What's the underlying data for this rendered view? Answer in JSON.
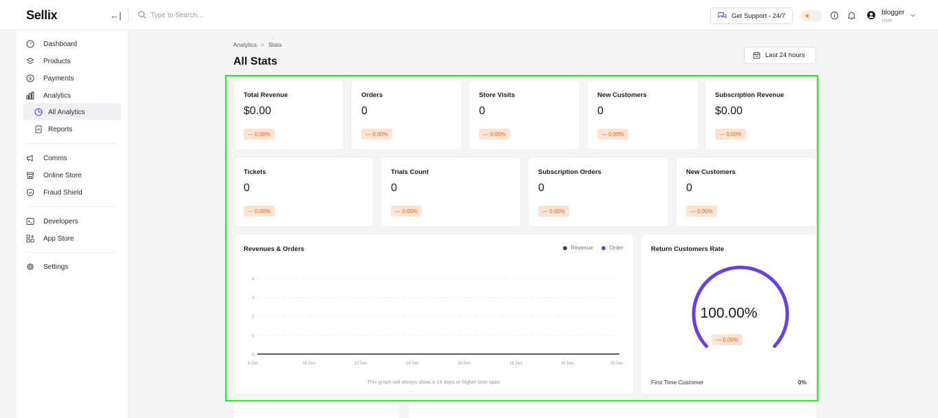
{
  "app": {
    "logo": "Sellix"
  },
  "header": {
    "collapse_glyph": "←|",
    "search": {
      "placeholder": "Type to Search..."
    },
    "support_label": "Get Support - 24/7",
    "user": {
      "name": "blogger",
      "role": "User"
    }
  },
  "sidebar": {
    "items": [
      {
        "label": "Dashboard",
        "icon": "dashboard-icon"
      },
      {
        "label": "Products",
        "icon": "products-icon"
      },
      {
        "label": "Payments",
        "icon": "payments-icon"
      },
      {
        "label": "Analytics",
        "icon": "analytics-icon"
      },
      {
        "label": "All Analytics",
        "icon": "pie-chart-icon",
        "active": true
      },
      {
        "label": "Reports",
        "icon": "reports-icon"
      },
      {
        "label": "Comms",
        "icon": "megaphone-icon"
      },
      {
        "label": "Online Store",
        "icon": "store-icon"
      },
      {
        "label": "Fraud Shield",
        "icon": "shield-icon"
      },
      {
        "label": "Developers",
        "icon": "terminal-icon"
      },
      {
        "label": "App Store",
        "icon": "apps-icon"
      },
      {
        "label": "Settings",
        "icon": "gear-icon"
      }
    ]
  },
  "main": {
    "breadcrumb": {
      "parent": "Analytics",
      "separator": ">",
      "current": "Stats"
    },
    "title": "All Stats",
    "range_label": "Last 24 hours",
    "row1": [
      {
        "label": "Total Revenue",
        "value": "$0.00",
        "change": "— 0.00%"
      },
      {
        "label": "Orders",
        "value": "0",
        "change": "— 0.00%"
      },
      {
        "label": "Store Visits",
        "value": "0",
        "change": "— 0.00%"
      },
      {
        "label": "New Customers",
        "value": "0",
        "change": "— 0.00%"
      },
      {
        "label": "Subscription Revenue",
        "value": "$0.00",
        "change": "— 0.00%"
      }
    ],
    "row2": [
      {
        "label": "Tickets",
        "value": "0",
        "change": "— 0.00%"
      },
      {
        "label": "Trials Count",
        "value": "0",
        "change": "— 0.00%"
      },
      {
        "label": "Subscription Orders",
        "value": "0",
        "change": "— 0.00%"
      },
      {
        "label": "New Customers",
        "value": "0",
        "change": "— 0.00%"
      }
    ],
    "revenue_chart": {
      "title": "Revenues & Orders",
      "note": "This graph will always show a 14 days or higher time span"
    },
    "return_rate": {
      "title": "Return Customers Rate",
      "value": "100.00%",
      "change": "— 0.00%",
      "foot_label": "First Time Customer",
      "foot_value": "0%"
    }
  },
  "colors": {
    "accent": "#6a3de8",
    "revenue": "#444444",
    "highlight": "#22ee22",
    "pill_bg": "#fde4d2",
    "pill_text": "#e0662a"
  },
  "chart_data": {
    "type": "line",
    "title": "Revenues & Orders",
    "x": [
      "8 Dec",
      "10 Dec",
      "12 Dec",
      "14 Dec",
      "16 Dec",
      "18 Dec",
      "20 Dec",
      "22 Dec"
    ],
    "series": [
      {
        "name": "Revenue",
        "values": [
          0,
          0,
          0,
          0,
          0,
          0,
          0,
          0
        ],
        "color": "#444444"
      },
      {
        "name": "Order",
        "values": [
          0,
          0,
          0,
          0,
          0,
          0,
          0,
          0
        ],
        "color": "#6a3de8"
      }
    ],
    "ylim": [
      0,
      4
    ],
    "yticks": [
      0,
      1,
      2,
      3,
      4
    ],
    "legend": "top-right",
    "grid": true
  }
}
